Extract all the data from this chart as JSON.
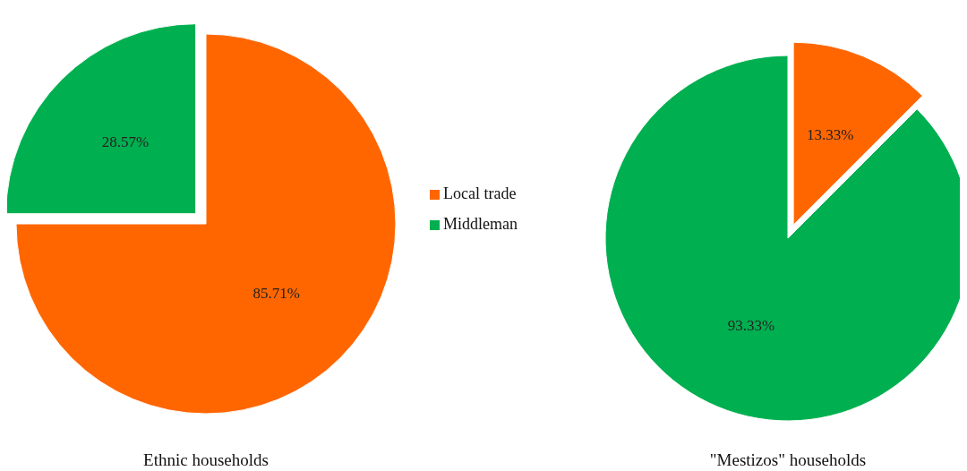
{
  "chart_data": [
    {
      "type": "pie",
      "title": "Ethnic households",
      "categories": [
        "Local trade",
        "Middleman"
      ],
      "values": [
        85.71,
        28.57
      ],
      "value_labels": [
        "85.71%",
        "28.57%"
      ],
      "colors": [
        "#ff6600",
        "#00b050"
      ],
      "legend": "right"
    },
    {
      "type": "pie",
      "title": "\"Mestizos\" households",
      "categories": [
        null,
        null
      ],
      "values": [
        13.33,
        93.33
      ],
      "value_labels": [
        "13.33%",
        "93.33%"
      ],
      "colors": [
        "#ff6600",
        "#00b050"
      ]
    }
  ]
}
